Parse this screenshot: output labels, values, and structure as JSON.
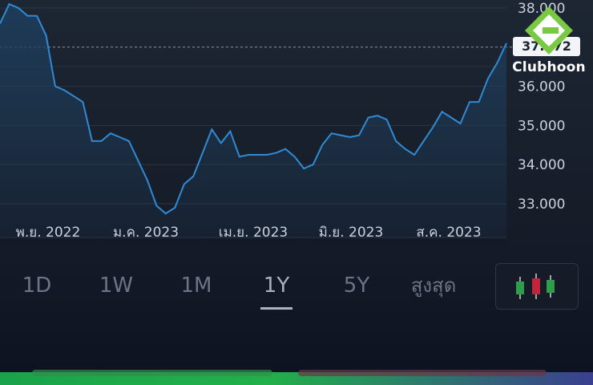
{
  "chart_data": {
    "type": "area",
    "x_labels": [
      "พ.ย. 2022",
      "ม.ค. 2023",
      "เม.ย. 2023",
      "มิ.ย. 2023",
      "ส.ค. 2023"
    ],
    "y_ticks": [
      "33.000",
      "34.000",
      "35.000",
      "36.000",
      "38.000"
    ],
    "ylim": [
      32.6,
      38.2
    ],
    "grid": true,
    "current_value_line": 37.0,
    "series": [
      {
        "values": [
          37.6,
          38.1,
          38.0,
          37.8,
          37.8,
          37.3,
          36.0,
          35.9,
          35.75,
          35.6,
          34.6,
          34.6,
          34.8,
          34.7,
          34.6,
          34.1,
          33.6,
          32.95,
          32.75,
          32.9,
          33.5,
          33.7,
          34.3,
          34.9,
          34.55,
          34.85,
          34.2,
          34.25,
          34.25,
          34.25,
          34.3,
          34.4,
          34.2,
          33.9,
          34.0,
          34.5,
          34.8,
          34.75,
          34.7,
          34.75,
          35.2,
          35.25,
          35.15,
          34.6,
          34.4,
          34.25,
          34.6,
          34.95,
          35.35,
          35.2,
          35.05,
          35.6,
          35.6,
          36.2,
          36.6,
          37.1
        ]
      }
    ],
    "colors": {
      "line": "#2f8bd6",
      "fill": "#1e3d5c"
    }
  },
  "price_badge": {
    "value": "37.072"
  },
  "logo": {
    "name": "Clubhoon"
  },
  "range_tabs": [
    {
      "label": "1D"
    },
    {
      "label": "1W"
    },
    {
      "label": "1M"
    },
    {
      "label": "1Y"
    },
    {
      "label": "5Y"
    },
    {
      "label": "สูงสุด"
    }
  ],
  "active_tab": "1Y",
  "chart_type_button": {
    "icon": "candlestick-icon",
    "colors": [
      "#2f9e4a",
      "#c0263b",
      "#2f9e4a"
    ]
  }
}
